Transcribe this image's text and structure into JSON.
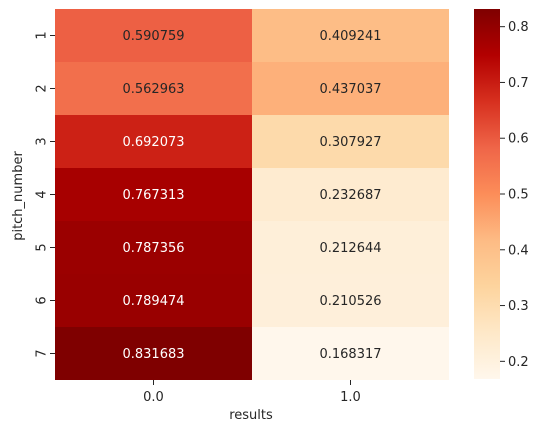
{
  "chart_data": {
    "type": "heatmap",
    "title": "",
    "xlabel": "results",
    "ylabel": "pitch_number",
    "x_categories": [
      "0.0",
      "1.0"
    ],
    "y_categories": [
      "1",
      "2",
      "3",
      "4",
      "5",
      "6",
      "7"
    ],
    "values": [
      [
        0.590759,
        0.409241
      ],
      [
        0.562963,
        0.437037
      ],
      [
        0.692073,
        0.307927
      ],
      [
        0.767313,
        0.232687
      ],
      [
        0.787356,
        0.212644
      ],
      [
        0.789474,
        0.210526
      ],
      [
        0.831683,
        0.168317
      ]
    ],
    "value_labels": [
      [
        "0.590759",
        "0.409241"
      ],
      [
        "0.562963",
        "0.437037"
      ],
      [
        "0.692073",
        "0.307927"
      ],
      [
        "0.767313",
        "0.232687"
      ],
      [
        "0.787356",
        "0.212644"
      ],
      [
        "0.789474",
        "0.210526"
      ],
      [
        "0.831683",
        "0.168317"
      ]
    ],
    "colormap": "OrRd",
    "color_range": [
      0.168317,
      0.831683
    ],
    "colorbar_ticks": [
      "0.2",
      "0.3",
      "0.4",
      "0.5",
      "0.6",
      "0.7",
      "0.8"
    ],
    "colorbar_tick_values": [
      0.2,
      0.3,
      0.4,
      0.5,
      0.6,
      0.7,
      0.8
    ],
    "grid": false,
    "legend": "colorbar-right"
  }
}
